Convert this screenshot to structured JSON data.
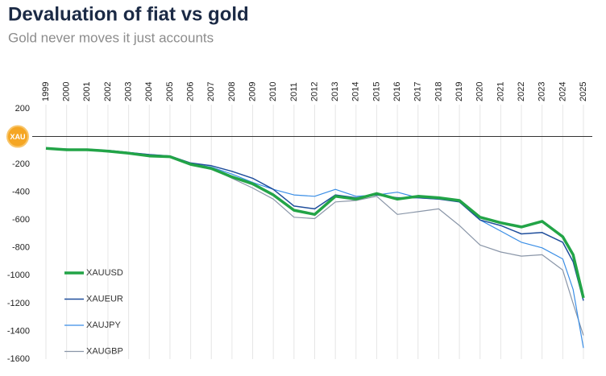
{
  "chart_data": {
    "type": "line",
    "title": "Devaluation of fiat vs gold",
    "subtitle": "Gold never moves it just accounts",
    "badge": "XAU",
    "x": [
      1999,
      2000,
      2001,
      2002,
      2003,
      2004,
      2005,
      2006,
      2007,
      2008,
      2009,
      2010,
      2011,
      2012,
      2013,
      2014,
      2015,
      2016,
      2017,
      2018,
      2019,
      2020,
      2021,
      2022,
      2023,
      2024,
      2024.5,
      2025
    ],
    "series": [
      {
        "name": "XAUUSD",
        "color": "#22a447",
        "width": 3.5,
        "values": [
          -85,
          -95,
          -95,
          -105,
          -120,
          -140,
          -145,
          -200,
          -230,
          -290,
          -340,
          -420,
          -530,
          -560,
          -430,
          -450,
          -410,
          -450,
          -430,
          -440,
          -460,
          -580,
          -620,
          -650,
          -610,
          -720,
          -850,
          -1160
        ]
      },
      {
        "name": "XAUEUR",
        "color": "#1f4e9c",
        "width": 1.5,
        "values": [
          -85,
          -90,
          -95,
          -100,
          -115,
          -130,
          -140,
          -190,
          -210,
          -250,
          -300,
          -380,
          -500,
          -520,
          -420,
          -440,
          -420,
          -440,
          -440,
          -450,
          -470,
          -600,
          -640,
          -700,
          -690,
          -760,
          -900,
          -1180
        ]
      },
      {
        "name": "XAUJPY",
        "color": "#3a8ee6",
        "width": 1.2,
        "values": [
          -85,
          -90,
          -90,
          -100,
          -115,
          -130,
          -140,
          -195,
          -220,
          -270,
          -330,
          -380,
          -420,
          -430,
          -380,
          -430,
          -420,
          -400,
          -440,
          -450,
          -460,
          -600,
          -680,
          -760,
          -800,
          -880,
          -1100,
          -1520
        ]
      },
      {
        "name": "XAUGBP",
        "color": "#8a96a8",
        "width": 1.2,
        "values": [
          -85,
          -90,
          -95,
          -105,
          -120,
          -135,
          -145,
          -200,
          -230,
          -300,
          -370,
          -450,
          -580,
          -590,
          -470,
          -460,
          -430,
          -560,
          -540,
          -520,
          -640,
          -780,
          -830,
          -860,
          -850,
          -960,
          -1200,
          -1430
        ]
      }
    ],
    "xlim": [
      1999,
      2025
    ],
    "xticks": [
      1999,
      2000,
      2001,
      2002,
      2003,
      2004,
      2005,
      2006,
      2007,
      2008,
      2009,
      2010,
      2011,
      2012,
      2013,
      2014,
      2015,
      2016,
      2017,
      2018,
      2019,
      2020,
      2021,
      2022,
      2023,
      2024,
      2025
    ],
    "ylim": [
      -1600,
      200
    ],
    "yticks": [
      200,
      -200,
      -400,
      -600,
      -800,
      -1000,
      -1200,
      -1400,
      -1600
    ],
    "grid": true,
    "legend": "lower left"
  }
}
